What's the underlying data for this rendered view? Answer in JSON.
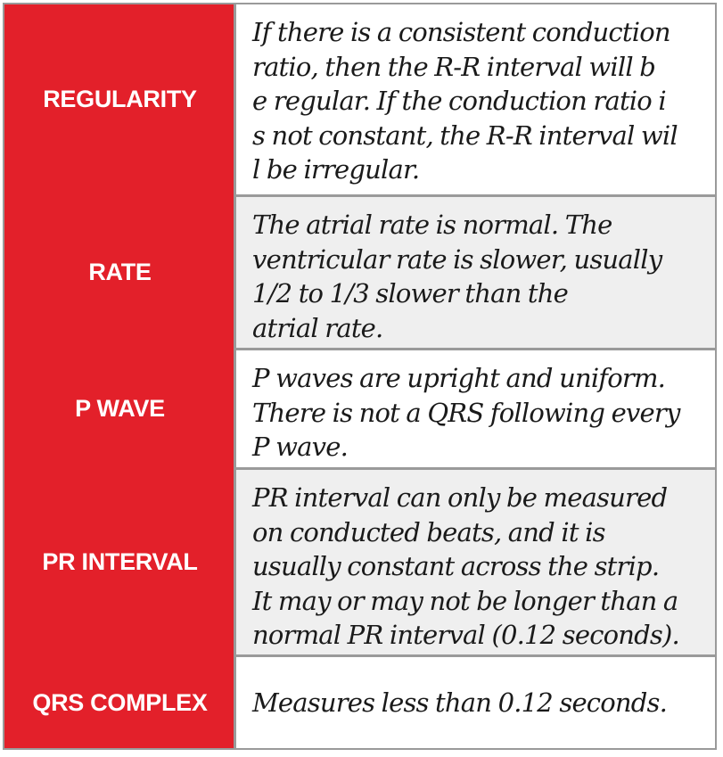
{
  "theme": {
    "label_background": "#e3202a",
    "label_text": "#ffffff",
    "shaded_row": "#efefef",
    "border": "#9a9a9a"
  },
  "rows": [
    {
      "label": "REGULARITY",
      "text": "If there is a consistent conduction ratio, then the R-R interval will be regular.  If the conduction ratio is not constant, the R-R interval will be irregular."
    },
    {
      "label": "RATE",
      "text": "The atrial rate is normal. The ventricular rate is slower, usually 1/2 to 1/3 slower than the atrial rate."
    },
    {
      "label": "P WAVE",
      "text": "P waves are upright and uniform. There is not a QRS following every P wave."
    },
    {
      "label": "PR INTERVAL",
      "text": "PR interval can only be measured on conducted beats, and it is usually constant across the strip. It may or may not be longer than a normal PR interval (0.12 seconds)."
    },
    {
      "label": "QRS COMPLEX",
      "text": "Measures less than 0.12 seconds."
    }
  ]
}
